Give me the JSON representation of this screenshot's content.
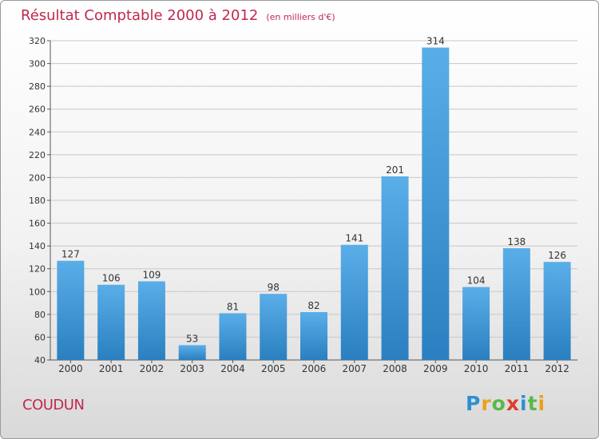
{
  "header": {
    "title": "Résultat Comptable 2000 à 2012",
    "unit": "(en milliers d'€)"
  },
  "footer": {
    "place_name": "COUDUN",
    "brand": [
      "P",
      "r",
      "o",
      "x",
      "i",
      "t",
      "i"
    ]
  },
  "colors": {
    "bar_top": "#5aaee8",
    "bar_bottom": "#2a7fc0",
    "grid": "#c8c8c8",
    "title": "#c0284f",
    "brand": [
      "#2e8fd0",
      "#e8a317",
      "#59b947",
      "#e03c2c",
      "#2e8fd0",
      "#59b947",
      "#e8a317"
    ]
  },
  "chart_data": {
    "type": "bar",
    "title": "Résultat Comptable 2000 à 2012",
    "xlabel": "",
    "ylabel": "",
    "categories": [
      "2000",
      "2001",
      "2002",
      "2003",
      "2004",
      "2005",
      "2006",
      "2007",
      "2008",
      "2009",
      "2010",
      "2011",
      "2012"
    ],
    "values": [
      127,
      106,
      109,
      53,
      81,
      98,
      82,
      141,
      201,
      314,
      104,
      138,
      126
    ],
    "ylim": [
      40,
      320
    ],
    "yticks": [
      40,
      60,
      80,
      100,
      120,
      140,
      160,
      180,
      200,
      220,
      240,
      260,
      280,
      300,
      320
    ],
    "grid": true
  }
}
